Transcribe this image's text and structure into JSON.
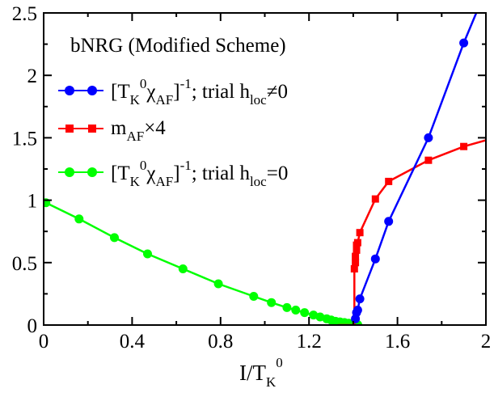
{
  "chart_data": {
    "type": "line",
    "title": "bNRG (Modified Scheme)",
    "xlabel": {
      "main": "I/T",
      "sub": "K",
      "sup": "0"
    },
    "ylabel": "",
    "xlim": [
      0,
      2
    ],
    "ylim": [
      0,
      2.5
    ],
    "x_ticks": [
      "0",
      "0.4",
      "0.8",
      "1.2",
      "1.6",
      "2"
    ],
    "y_ticks": [
      "0",
      "0.5",
      "1",
      "1.5",
      "2",
      "2.5"
    ],
    "x_tick_values": [
      0,
      0.4,
      0.8,
      1.2,
      1.6,
      2
    ],
    "y_tick_values": [
      0,
      0.5,
      1,
      1.5,
      2,
      2.5
    ],
    "grid": false,
    "legend_position": "top-left",
    "series": [
      {
        "key": "blue",
        "name": "[T_K^0 χ_AF]^-1; trial h_loc≠0",
        "legend": {
          "bracket_open": "[T",
          "k_sub": "K",
          "zero_sup": "0",
          "chi": "χ",
          "af_sub": "AF",
          "bracket_close": "]",
          "minus_one_sup": "-1",
          "mid": "; trial h",
          "loc_sub": "loc",
          "tail": "≠0"
        },
        "color": "#0000ff",
        "marker": "circle",
        "x": [
          1.41,
          1.415,
          1.42,
          1.43,
          1.5,
          1.56,
          1.74,
          1.9,
          1.98
        ],
        "y": [
          0.05,
          0.1,
          0.12,
          0.21,
          0.53,
          0.83,
          1.5,
          2.26,
          2.6
        ],
        "marker_x": [
          1.41,
          1.415,
          1.42,
          1.43,
          1.5,
          1.56,
          1.74,
          1.9
        ]
      },
      {
        "key": "red",
        "name": "m_AF×4",
        "legend": {
          "m": "m",
          "af_sub": "AF",
          "tail": "×4"
        },
        "color": "#ff0000",
        "marker": "square",
        "x": [
          1.33,
          1.4,
          1.405,
          1.405,
          1.41,
          1.41,
          1.415,
          1.415,
          1.42,
          1.43,
          1.5,
          1.56,
          1.74,
          1.9,
          2.0
        ],
        "y": [
          0.0,
          0.0,
          0.0,
          0.45,
          0.5,
          0.55,
          0.6,
          0.64,
          0.66,
          0.74,
          1.01,
          1.15,
          1.32,
          1.43,
          1.48
        ],
        "marker_x": [
          1.405,
          1.41,
          1.41,
          1.415,
          1.415,
          1.42,
          1.43,
          1.5,
          1.56,
          1.74,
          1.9
        ],
        "marker_y": [
          0.45,
          0.5,
          0.55,
          0.6,
          0.64,
          0.66,
          0.74,
          1.01,
          1.15,
          1.32,
          1.43
        ]
      },
      {
        "key": "green",
        "name": "[T_K^0 χ_AF]^-1; trial h_loc=0",
        "legend": {
          "bracket_open": "[T",
          "k_sub": "K",
          "zero_sup": "0",
          "chi": "χ",
          "af_sub": "AF",
          "bracket_close": "]",
          "minus_one_sup": "-1",
          "mid": "; trial h",
          "loc_sub": "loc",
          "tail": "=0"
        },
        "color": "#00ff00",
        "marker": "circle",
        "x": [
          0.01,
          0.16,
          0.32,
          0.47,
          0.63,
          0.79,
          0.95,
          1.03,
          1.1,
          1.14,
          1.18,
          1.22,
          1.25,
          1.28,
          1.3,
          1.32,
          1.34,
          1.36,
          1.38,
          1.39,
          1.4,
          1.41,
          1.42
        ],
        "y": [
          0.98,
          0.85,
          0.7,
          0.57,
          0.45,
          0.33,
          0.23,
          0.18,
          0.14,
          0.12,
          0.1,
          0.08,
          0.065,
          0.05,
          0.04,
          0.03,
          0.025,
          0.02,
          0.015,
          0.01,
          0.008,
          0.005,
          0.003
        ]
      }
    ]
  }
}
